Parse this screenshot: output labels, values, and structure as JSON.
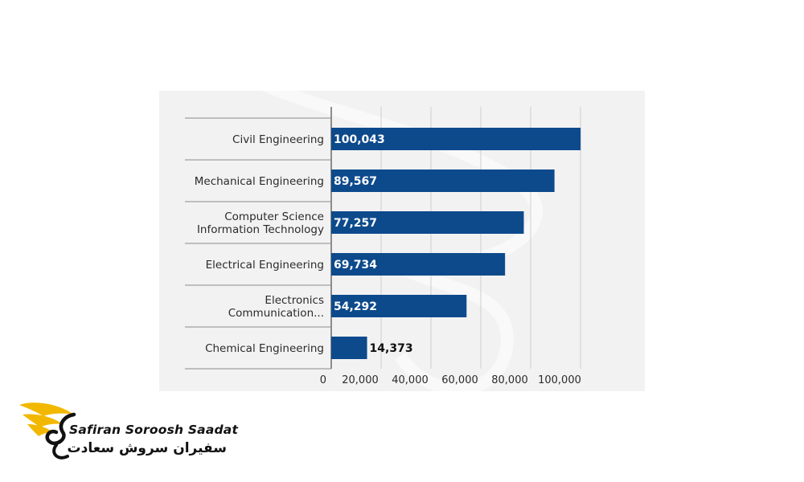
{
  "chart_data": {
    "type": "bar",
    "orientation": "horizontal",
    "categories": [
      [
        "Civil Engineering"
      ],
      [
        "Mechanical Engineering"
      ],
      [
        "Computer Science",
        "Information Technology"
      ],
      [
        "Electrical Engineering"
      ],
      [
        "Electronics",
        "Communication..."
      ],
      [
        "Chemical Engineering"
      ]
    ],
    "values": [
      100043,
      89567,
      77257,
      69734,
      54292,
      14373
    ],
    "value_labels": [
      "100,043",
      "89,567",
      "77,257",
      "69,734",
      "54,292",
      "14,373"
    ],
    "xlim": [
      0,
      100000
    ],
    "ticks": [
      0,
      20000,
      40000,
      60000,
      80000,
      100000
    ],
    "tick_labels": [
      "0",
      "20,000",
      "40,000",
      "60,000",
      "80,000",
      "100,000"
    ],
    "grid": true,
    "title": "",
    "xlabel": "",
    "ylabel": "",
    "colors": {
      "bar": "#0d4a8c",
      "label_inside": "#ffffff",
      "label_outside": "#111111",
      "grid": "#cfcfcf",
      "axis": "#555555"
    }
  },
  "logo": {
    "text_en": "Safiran Soroosh Saadat",
    "text_fa": "سفیران سروش سعادت",
    "colors": {
      "wing": "#f2b800",
      "text": "#111111"
    }
  }
}
